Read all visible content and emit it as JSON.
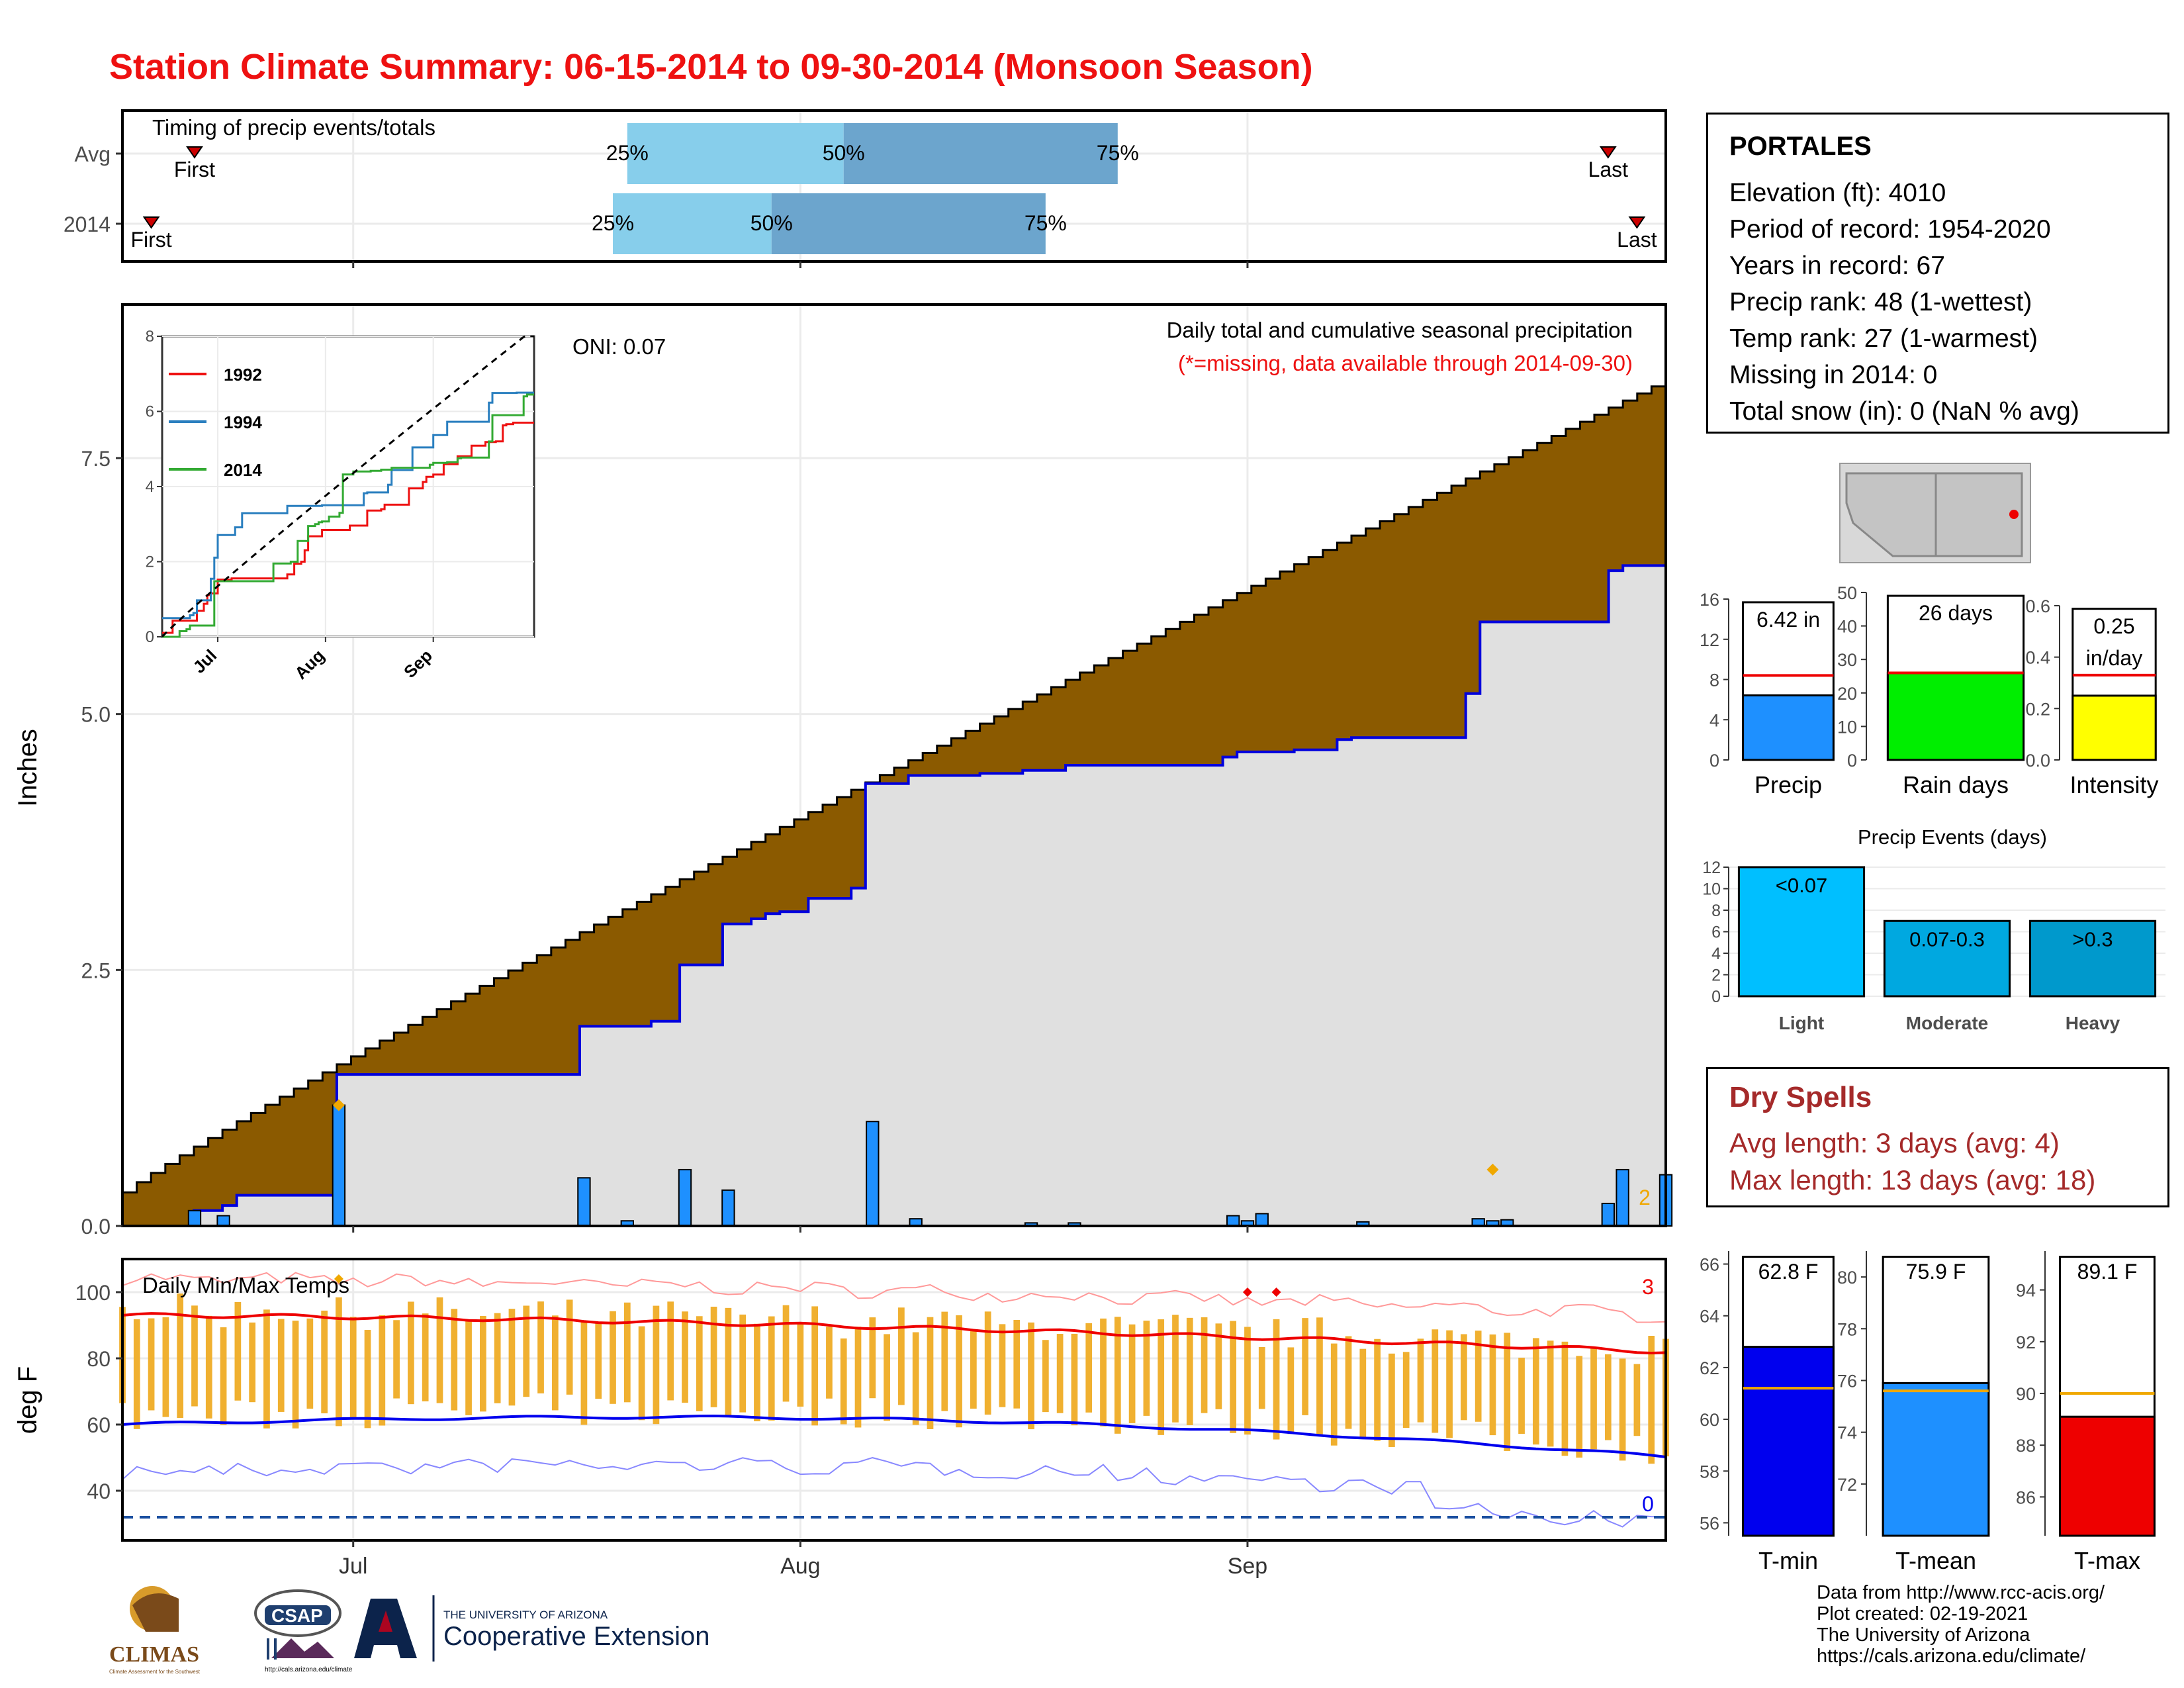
{
  "title": "Station Climate Summary: 06-15-2014 to 09-30-2014 (Monsoon Season)",
  "colors": {
    "title": "#ee1111",
    "brown": "#8b5a00",
    "green": "#008000",
    "gray_fill": "#e0e0e0",
    "bar_blue": "#1e90ff",
    "timing_light": "#87ceeb",
    "timing_dark": "#6ca5cd",
    "tmin": "#0000ee",
    "tmax": "#ee0000",
    "orange": "#f0a800",
    "dry": "#a52a2a",
    "light_events": "#00bfff",
    "moderate_events": "#00a8e0",
    "heavy_events": "#0099cc",
    "rain_green": "#00ee00",
    "intensity_yellow": "#ffff00"
  },
  "station": {
    "name": "PORTALES",
    "lines": [
      "Elevation (ft): 4010",
      "Period of record: 1954-2020",
      "Years in record: 67",
      "Precip rank: 48 (1-wettest)",
      "Temp rank: 27 (1-warmest)",
      "Missing in 2014: 0",
      "Total snow (in): 0 (NaN % avg)"
    ]
  },
  "dry_spells": {
    "title": "Dry Spells",
    "lines": [
      "Avg length: 3 days (avg: 4)",
      "Max length: 13 days (avg: 18)"
    ]
  },
  "credits": [
    "Data from http://www.rcc-acis.org/",
    "Plot created: 02-19-2021",
    "The University of Arizona",
    "https://cals.arizona.edu/climate/"
  ],
  "logos": {
    "climas": "CLIMAS",
    "climas_sub": "Climate Assessment for the Southwest",
    "csap": "CSAP",
    "csap_url": "http://cals.arizona.edu/climate",
    "ua_top": "THE UNIVERSITY OF ARIZONA",
    "ua_bottom": "Cooperative Extension"
  },
  "chart_data": [
    {
      "type": "timing",
      "title": "Timing of precip events/totals",
      "xlim": [
        "2014-06-15",
        "2014-09-30"
      ],
      "rows": [
        {
          "label": "Avg",
          "first": "2014-06-20",
          "p25": "2014-07-20",
          "p50": "2014-08-04",
          "p75": "2014-08-23",
          "last": "2014-09-26",
          "first_label": "First",
          "last_label": "Last",
          "p25_label": "25%",
          "p50_label": "50%",
          "p75_label": "75%"
        },
        {
          "label": "2014",
          "first": "2014-06-17",
          "p25": "2014-07-19",
          "p50": "2014-07-30",
          "p75": "2014-08-18",
          "last": "2014-09-28",
          "first_label": "First",
          "last_label": "Last",
          "p25_label": "25%",
          "p50_label": "50%",
          "p75_label": "75%"
        }
      ]
    },
    {
      "type": "area",
      "title": "Daily total and cumulative seasonal precipitation",
      "subtitle": "(*=missing, data available through 2014-09-30)",
      "annotation": "ONI: 0.07",
      "ylabel": "Inches",
      "ylim": [
        0,
        9
      ],
      "yticks": [
        0.0,
        2.5,
        5.0,
        7.5
      ],
      "ytick_labels": [
        "0.0",
        "2.5",
        "5.0",
        "7.5"
      ],
      "start_date": "2014-06-15",
      "end_date": "2014-09-30",
      "avg_cumulative_end": 8.2,
      "observed_steps": [
        [
          "2014-06-15",
          0.0
        ],
        [
          "2014-06-20",
          0.15
        ],
        [
          "2014-06-22",
          0.2
        ],
        [
          "2014-06-23",
          0.3
        ],
        [
          "2014-06-30",
          1.48
        ],
        [
          "2014-07-17",
          1.95
        ],
        [
          "2014-07-22",
          2.0
        ],
        [
          "2014-07-24",
          2.55
        ],
        [
          "2014-07-27",
          2.95
        ],
        [
          "2014-07-29",
          3.0
        ],
        [
          "2014-07-30",
          3.05
        ],
        [
          "2014-07-31",
          3.07
        ],
        [
          "2014-08-02",
          3.2
        ],
        [
          "2014-08-05",
          3.3
        ],
        [
          "2014-08-06",
          4.32
        ],
        [
          "2014-08-09",
          4.4
        ],
        [
          "2014-08-14",
          4.42
        ],
        [
          "2014-08-17",
          4.45
        ],
        [
          "2014-08-20",
          4.5
        ],
        [
          "2014-08-31",
          4.58
        ],
        [
          "2014-09-01",
          4.63
        ],
        [
          "2014-09-05",
          4.65
        ],
        [
          "2014-09-08",
          4.75
        ],
        [
          "2014-09-09",
          4.77
        ],
        [
          "2014-09-17",
          5.2
        ],
        [
          "2014-09-18",
          5.9
        ],
        [
          "2014-09-27",
          6.4
        ],
        [
          "2014-09-28",
          6.45
        ]
      ],
      "daily_bars": [
        [
          "2014-06-20",
          0.15
        ],
        [
          "2014-06-22",
          0.1
        ],
        [
          "2014-06-30",
          1.18
        ],
        [
          "2014-07-17",
          0.47
        ],
        [
          "2014-07-20",
          0.05
        ],
        [
          "2014-07-24",
          0.55
        ],
        [
          "2014-07-27",
          0.35
        ],
        [
          "2014-08-06",
          1.02
        ],
        [
          "2014-08-09",
          0.07
        ],
        [
          "2014-08-17",
          0.03
        ],
        [
          "2014-08-20",
          0.03
        ],
        [
          "2014-08-31",
          0.1
        ],
        [
          "2014-09-01",
          0.05
        ],
        [
          "2014-09-02",
          0.12
        ],
        [
          "2014-09-09",
          0.04
        ],
        [
          "2014-09-17",
          0.07
        ],
        [
          "2014-09-18",
          0.05
        ],
        [
          "2014-09-19",
          0.06
        ],
        [
          "2014-09-26",
          0.22
        ],
        [
          "2014-09-27",
          0.55
        ],
        [
          "2014-09-30",
          0.5
        ]
      ],
      "extremes_count": "2",
      "x_ticks": [
        "Jul",
        "Aug",
        "Sep"
      ]
    },
    {
      "type": "line",
      "inset": true,
      "ylim": [
        0,
        8
      ],
      "yticks": [
        0,
        2,
        4,
        6,
        8
      ],
      "x_ticks": [
        "Jul",
        "Aug",
        "Sep"
      ],
      "series": [
        {
          "name": "1992",
          "color": "#ee1111"
        },
        {
          "name": "1994",
          "color": "#2a7fbf"
        },
        {
          "name": "2014",
          "color": "#33aa33"
        },
        {
          "name": "",
          "color": "#000000",
          "dashed": true
        }
      ]
    },
    {
      "type": "bar",
      "title": "Daily Min/Max Temps",
      "ylabel": "deg F",
      "ylim": [
        25,
        110
      ],
      "yticks": [
        40,
        60,
        80,
        100
      ],
      "x_ticks": [
        "Jul",
        "Aug",
        "Sep"
      ],
      "freezing_line": 32,
      "count_max": "3",
      "count_min": "0",
      "avg_tmax_start": 93,
      "avg_tmax_end": 82,
      "avg_tmin_start": 60,
      "avg_tmin_end": 49
    },
    {
      "type": "bar",
      "title": "Precip",
      "value_label": "6.42 in",
      "value": 6.42,
      "average": 8.4,
      "ylim": [
        0,
        16
      ],
      "yticks": [
        0,
        4,
        8,
        12,
        16
      ]
    },
    {
      "type": "bar",
      "title": "Rain days",
      "value_label": "26 days",
      "value": 26,
      "average": 26,
      "ylim": [
        0,
        50
      ],
      "yticks": [
        0,
        10,
        20,
        30,
        40,
        50
      ]
    },
    {
      "type": "bar",
      "title": "Intensity",
      "value_label_1": "0.25",
      "value_label_2": "in/day",
      "value": 0.25,
      "average": 0.33,
      "ylim": [
        0,
        0.6
      ],
      "yticks": [
        0.0,
        0.2,
        0.4,
        0.6
      ],
      "ytick_labels": [
        "0.0",
        "0.2",
        "0.4",
        "0.6"
      ]
    },
    {
      "type": "bar",
      "title": "Precip Events (days)",
      "categories": [
        "Light",
        "Moderate",
        "Heavy"
      ],
      "bar_labels": [
        "<0.07",
        "0.07-0.3",
        ">0.3"
      ],
      "values": [
        12,
        7,
        7
      ],
      "ylim": [
        0,
        12
      ],
      "yticks": [
        0,
        2,
        4,
        6,
        8,
        10,
        12
      ]
    },
    {
      "type": "bar",
      "title": "T-min",
      "value_label": "62.8 F",
      "value": 62.8,
      "average": 61.2,
      "ylim": [
        55.5,
        66.5
      ],
      "yticks": [
        56,
        58,
        60,
        62,
        64,
        66
      ]
    },
    {
      "type": "bar",
      "title": "T-mean",
      "value_label": "75.9 F",
      "value": 75.9,
      "average": 75.6,
      "ylim": [
        70,
        81
      ],
      "yticks": [
        72,
        74,
        76,
        78,
        80
      ]
    },
    {
      "type": "bar",
      "title": "T-max",
      "value_label": "89.1 F",
      "value": 89.1,
      "average": 90.0,
      "ylim": [
        84.5,
        95.5
      ],
      "yticks": [
        86,
        88,
        90,
        92,
        94
      ]
    }
  ]
}
